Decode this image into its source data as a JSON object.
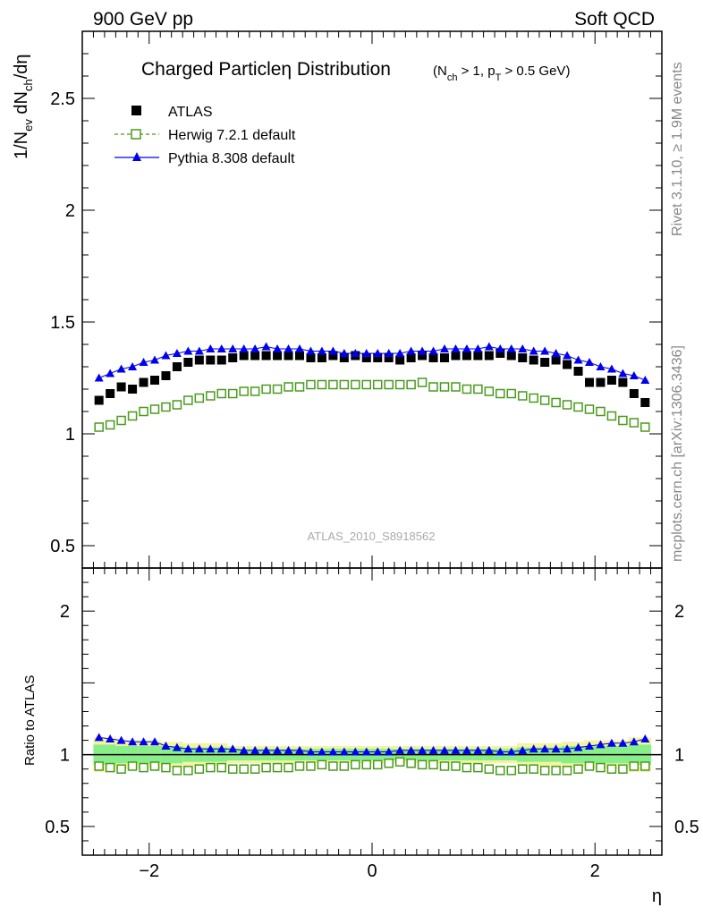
{
  "header": {
    "left": "900 GeV pp",
    "right": "Soft QCD"
  },
  "side_labels": {
    "rivet": "Rivet 3.1.10, ≥ 1.9M events",
    "mcplots": "mcplots.cern.ch [arXiv:1306.3436]"
  },
  "colors": {
    "data": "#000000",
    "herwig": "#4a9a1e",
    "pythia": "#0000ee",
    "band_inner": "#88ee88",
    "band_outer": "#f4f4a0"
  },
  "chart_data": [
    {
      "type": "scatter",
      "panel": "main",
      "title": "Charged Particleη Distribution",
      "title_sub": "(N_ch > 1, p_T > 0.5 GeV)",
      "ylabel": "1/N_ev dN_ch/dη",
      "xlabel": "η",
      "xlim": [
        -2.6,
        2.6
      ],
      "ylim": [
        0.4,
        2.8
      ],
      "yticks": [
        "0.5",
        "1",
        "1.5",
        "2",
        "2.5"
      ],
      "watermark": "ATLAS_2010_S8918562",
      "legend": [
        {
          "name": "ATLAS",
          "marker": "square-filled"
        },
        {
          "name": "Herwig 7.2.1 default",
          "marker": "square-open-dashed"
        },
        {
          "name": "Pythia 8.308 default",
          "marker": "triangle-line"
        }
      ],
      "x": [
        -2.45,
        -2.35,
        -2.25,
        -2.15,
        -2.05,
        -1.95,
        -1.85,
        -1.75,
        -1.65,
        -1.55,
        -1.45,
        -1.35,
        -1.25,
        -1.15,
        -1.05,
        -0.95,
        -0.85,
        -0.75,
        -0.65,
        -0.55,
        -0.45,
        -0.35,
        -0.25,
        -0.15,
        -0.05,
        0.05,
        0.15,
        0.25,
        0.35,
        0.45,
        0.55,
        0.65,
        0.75,
        0.85,
        0.95,
        1.05,
        1.15,
        1.25,
        1.35,
        1.45,
        1.55,
        1.65,
        1.75,
        1.85,
        1.95,
        2.05,
        2.15,
        2.25,
        2.35,
        2.45
      ],
      "series": [
        {
          "name": "ATLAS",
          "values": [
            1.15,
            1.18,
            1.21,
            1.2,
            1.23,
            1.24,
            1.26,
            1.3,
            1.32,
            1.33,
            1.33,
            1.33,
            1.34,
            1.35,
            1.35,
            1.35,
            1.35,
            1.35,
            1.35,
            1.34,
            1.34,
            1.35,
            1.34,
            1.35,
            1.34,
            1.34,
            1.34,
            1.33,
            1.34,
            1.35,
            1.34,
            1.34,
            1.35,
            1.35,
            1.35,
            1.35,
            1.36,
            1.35,
            1.34,
            1.33,
            1.32,
            1.33,
            1.31,
            1.28,
            1.23,
            1.23,
            1.24,
            1.23,
            1.18,
            1.14
          ]
        },
        {
          "name": "Herwig 7.2.1 default",
          "values": [
            1.03,
            1.04,
            1.06,
            1.08,
            1.1,
            1.11,
            1.12,
            1.13,
            1.15,
            1.16,
            1.17,
            1.18,
            1.18,
            1.19,
            1.19,
            1.2,
            1.2,
            1.21,
            1.21,
            1.22,
            1.22,
            1.22,
            1.22,
            1.22,
            1.22,
            1.22,
            1.22,
            1.22,
            1.22,
            1.23,
            1.21,
            1.21,
            1.21,
            1.2,
            1.2,
            1.19,
            1.18,
            1.18,
            1.17,
            1.16,
            1.15,
            1.14,
            1.13,
            1.12,
            1.11,
            1.1,
            1.08,
            1.06,
            1.05,
            1.03
          ]
        },
        {
          "name": "Pythia 8.308 default",
          "values": [
            1.25,
            1.27,
            1.29,
            1.3,
            1.32,
            1.33,
            1.35,
            1.36,
            1.37,
            1.37,
            1.38,
            1.38,
            1.38,
            1.38,
            1.38,
            1.39,
            1.38,
            1.38,
            1.38,
            1.37,
            1.37,
            1.37,
            1.36,
            1.36,
            1.36,
            1.36,
            1.36,
            1.36,
            1.37,
            1.37,
            1.37,
            1.38,
            1.38,
            1.38,
            1.38,
            1.39,
            1.38,
            1.38,
            1.38,
            1.37,
            1.37,
            1.36,
            1.35,
            1.33,
            1.32,
            1.3,
            1.29,
            1.27,
            1.26,
            1.24
          ]
        }
      ]
    },
    {
      "type": "scatter",
      "panel": "ratio",
      "ylabel": "Ratio to ATLAS",
      "xlabel": "η",
      "xlim": [
        -2.6,
        2.6
      ],
      "ylim": [
        0.3,
        2.3
      ],
      "yticks": [
        "0.5",
        "1",
        "2"
      ],
      "xticks": [
        "−2",
        "0",
        "2"
      ],
      "x": [
        -2.45,
        -2.35,
        -2.25,
        -2.15,
        -2.05,
        -1.95,
        -1.85,
        -1.75,
        -1.65,
        -1.55,
        -1.45,
        -1.35,
        -1.25,
        -1.15,
        -1.05,
        -0.95,
        -0.85,
        -0.75,
        -0.65,
        -0.55,
        -0.45,
        -0.35,
        -0.25,
        -0.15,
        -0.05,
        0.05,
        0.15,
        0.25,
        0.35,
        0.45,
        0.55,
        0.65,
        0.75,
        0.85,
        0.95,
        1.05,
        1.15,
        1.25,
        1.35,
        1.45,
        1.55,
        1.65,
        1.75,
        1.85,
        1.95,
        2.05,
        2.15,
        2.25,
        2.35,
        2.45
      ],
      "band": {
        "inner": [
          0.07,
          0.07,
          0.06,
          0.06,
          0.06,
          0.06,
          0.06,
          0.06,
          0.05,
          0.05,
          0.05,
          0.05,
          0.04,
          0.04,
          0.04,
          0.04,
          0.04,
          0.04,
          0.04,
          0.04,
          0.04,
          0.04,
          0.04,
          0.04,
          0.04,
          0.04,
          0.04,
          0.04,
          0.04,
          0.04,
          0.04,
          0.04,
          0.04,
          0.04,
          0.04,
          0.04,
          0.04,
          0.04,
          0.05,
          0.05,
          0.05,
          0.05,
          0.06,
          0.06,
          0.06,
          0.06,
          0.06,
          0.06,
          0.07,
          0.07
        ],
        "outer": [
          0.12,
          0.12,
          0.1,
          0.1,
          0.1,
          0.1,
          0.09,
          0.09,
          0.08,
          0.08,
          0.08,
          0.08,
          0.06,
          0.06,
          0.06,
          0.06,
          0.06,
          0.06,
          0.06,
          0.06,
          0.06,
          0.06,
          0.06,
          0.06,
          0.06,
          0.06,
          0.06,
          0.06,
          0.06,
          0.06,
          0.06,
          0.06,
          0.06,
          0.06,
          0.06,
          0.06,
          0.06,
          0.06,
          0.08,
          0.08,
          0.08,
          0.08,
          0.09,
          0.09,
          0.1,
          0.1,
          0.1,
          0.1,
          0.12,
          0.12
        ]
      },
      "series": [
        {
          "name": "Herwig 7.2.1 default",
          "values": [
            0.92,
            0.91,
            0.9,
            0.92,
            0.91,
            0.92,
            0.91,
            0.89,
            0.89,
            0.9,
            0.91,
            0.91,
            0.9,
            0.9,
            0.9,
            0.91,
            0.91,
            0.91,
            0.92,
            0.92,
            0.93,
            0.92,
            0.92,
            0.93,
            0.93,
            0.93,
            0.94,
            0.95,
            0.94,
            0.93,
            0.93,
            0.92,
            0.92,
            0.91,
            0.91,
            0.9,
            0.89,
            0.89,
            0.9,
            0.9,
            0.89,
            0.89,
            0.89,
            0.9,
            0.92,
            0.91,
            0.9,
            0.9,
            0.92,
            0.92
          ]
        },
        {
          "name": "Pythia 8.308 default",
          "values": [
            1.12,
            1.11,
            1.1,
            1.09,
            1.09,
            1.09,
            1.06,
            1.05,
            1.04,
            1.04,
            1.04,
            1.04,
            1.04,
            1.03,
            1.03,
            1.03,
            1.03,
            1.03,
            1.03,
            1.02,
            1.02,
            1.02,
            1.02,
            1.02,
            1.02,
            1.02,
            1.02,
            1.03,
            1.03,
            1.03,
            1.03,
            1.03,
            1.03,
            1.03,
            1.03,
            1.03,
            1.02,
            1.02,
            1.03,
            1.04,
            1.04,
            1.04,
            1.04,
            1.05,
            1.06,
            1.07,
            1.08,
            1.08,
            1.09,
            1.11
          ]
        }
      ]
    }
  ]
}
